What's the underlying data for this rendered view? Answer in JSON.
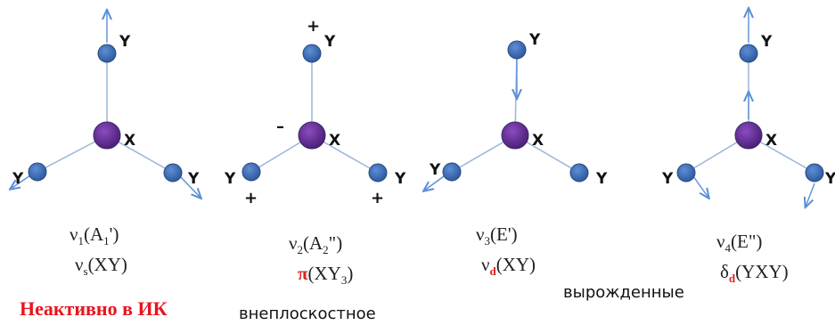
{
  "atoms": {
    "central": "X",
    "outer": "Y"
  },
  "signs": {
    "plus": "+",
    "minus": "–"
  },
  "modes": [
    {
      "nu": "ν",
      "idx": "1",
      "sym": "A",
      "symIdx": "1",
      "prime": "'",
      "line2Sym": "ν",
      "line2Idx": "s",
      "line2Tail": "(XY)"
    },
    {
      "nu": "ν",
      "idx": "2",
      "sym": "A",
      "symIdx": "2",
      "prime": "\"",
      "line2Sym": "π",
      "line2Mid": "(XY",
      "line2Idx": "3",
      "line2Tail": ")"
    },
    {
      "nu": "ν",
      "idx": "3",
      "sym": "E",
      "prime": "'",
      "line2Sym": "ν",
      "line2Idx": "d",
      "line2Tail": "(XY)"
    },
    {
      "nu": "ν",
      "idx": "4",
      "sym": "E",
      "prime": "\"",
      "line2Sym": "δ",
      "line2Idx": "d",
      "line2Tail": "(YXY)"
    }
  ],
  "notes": {
    "inactive": "Неактивно в ИК",
    "outOfPlane": "внеплоскостное",
    "degenerate": "вырожденные"
  },
  "colors": {
    "atom": "#3f6db8",
    "central": "#6a2f98",
    "bond": "#9ab4d8",
    "arrow": "#5a8fd8",
    "red": "#e02020"
  }
}
